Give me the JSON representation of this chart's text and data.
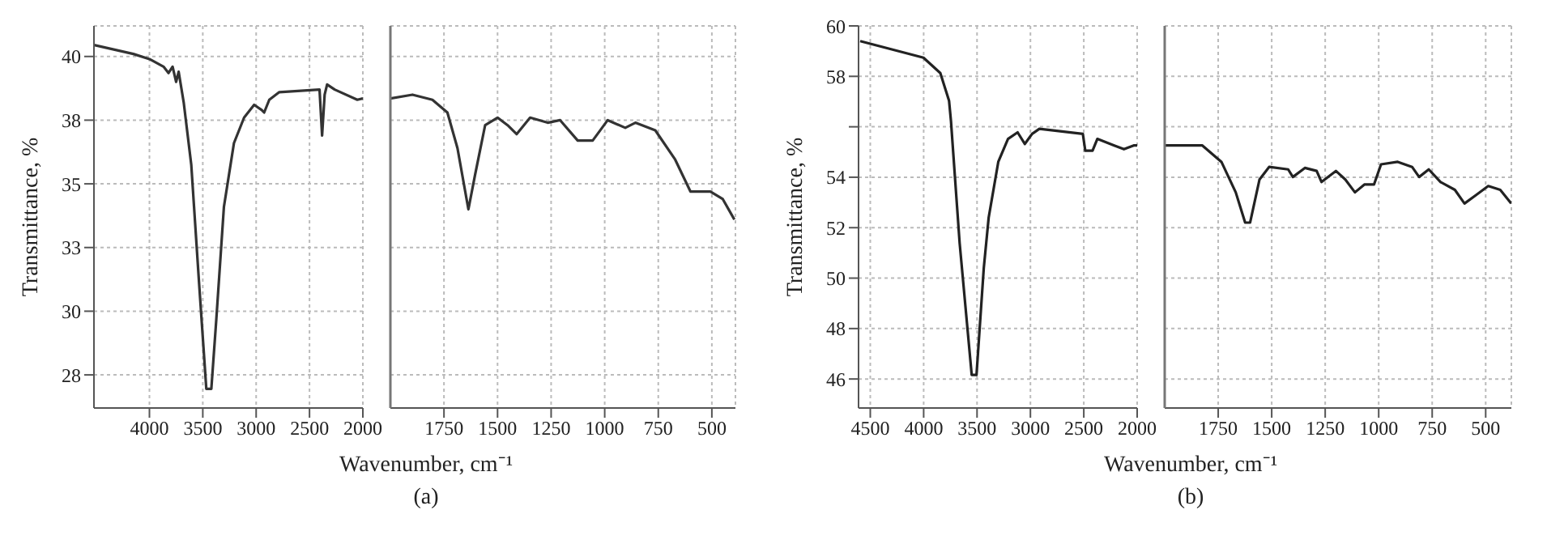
{
  "chart_data": [
    {
      "type": "line",
      "xlabel": "Wavenumber, cm⁻¹",
      "ylabel": "Transmittance, %",
      "annotations": [
        "(a)"
      ],
      "grid": true,
      "xlim": [
        4520,
        2000
      ],
      "xticks": [
        4000,
        3500,
        3000,
        2500,
        2000
      ],
      "ylim": [
        26.2,
        41.2
      ],
      "yticks": [
        {
          "value": 27.5,
          "label": "28"
        },
        30,
        {
          "value": 32.5,
          "label": "33"
        },
        35,
        {
          "value": 37.5,
          "label": "38"
        },
        40
      ],
      "series": [
        {
          "color": "#333333",
          "x": [
            4519,
            4151,
            4000,
            3868,
            3821,
            3783,
            3750,
            3726,
            3679,
            3608,
            3538,
            3467,
            3420,
            3373,
            3302,
            3208,
            3113,
            3019,
            2948,
            2925,
            2877,
            2783,
            2406,
            2382,
            2358,
            2335,
            2264,
            2052,
            2000
          ],
          "values": [
            40.45,
            40.1,
            39.9,
            39.6,
            39.35,
            39.6,
            39.0,
            39.4,
            38.2,
            35.75,
            31.3,
            26.95,
            26.95,
            29.7,
            34.1,
            36.6,
            37.6,
            38.1,
            37.9,
            37.8,
            38.3,
            38.6,
            38.7,
            36.9,
            38.5,
            38.9,
            38.7,
            38.3,
            38.35
          ]
        }
      ]
    },
    {
      "type": "line",
      "tick_labels": "x",
      "grid": true,
      "xlim": [
        2000,
        390
      ],
      "xticks": [
        1750,
        1500,
        1250,
        1000,
        750,
        500
      ],
      "ylim": [
        26.2,
        41.2
      ],
      "yticks": [
        27.5,
        30,
        32.5,
        35,
        37.5,
        40
      ],
      "series": [
        {
          "color": "#333333",
          "x": [
            2000,
            1897,
            1804,
            1734,
            1687,
            1636,
            1605,
            1558,
            1500,
            1453,
            1411,
            1348,
            1266,
            1208,
            1126,
            1056,
            986,
            904,
            857,
            764,
            671,
            600,
            507,
            449,
            395
          ],
          "values": [
            38.35,
            38.5,
            38.3,
            37.8,
            36.4,
            34.0,
            35.35,
            37.3,
            37.6,
            37.3,
            36.95,
            37.6,
            37.4,
            37.5,
            36.7,
            36.7,
            37.5,
            37.2,
            37.4,
            37.1,
            35.95,
            34.7,
            34.7,
            34.4,
            33.6
          ]
        }
      ]
    },
    {
      "type": "line",
      "xlabel": "Wavenumber, cm⁻¹",
      "ylabel": "Transmittance, %",
      "annotations": [
        "(b)"
      ],
      "grid": true,
      "xlim": [
        4610,
        2000
      ],
      "xticks": [
        4500,
        4000,
        3500,
        3000,
        2500,
        2000
      ],
      "ylim": [
        44.85,
        60
      ],
      "yticks": [
        46,
        48,
        50,
        52,
        54,
        {
          "value": 56,
          "label": null
        },
        58,
        60
      ],
      "series": [
        {
          "color": "#222222",
          "x": [
            4595,
            4002,
            3844,
            3762,
            3744,
            3663,
            3550,
            3505,
            3437,
            3391,
            3301,
            3210,
            3120,
            3052,
            2984,
            2916,
            2509,
            2486,
            2418,
            2373,
            2215,
            2124,
            2033,
            2000
          ],
          "values": [
            59.4,
            58.74,
            58.13,
            57.03,
            56.22,
            51.39,
            46.16,
            46.16,
            50.39,
            52.4,
            54.61,
            55.52,
            55.78,
            55.32,
            55.72,
            55.92,
            55.72,
            55.05,
            55.05,
            55.52,
            55.26,
            55.11,
            55.26,
            55.26
          ]
        }
      ]
    },
    {
      "type": "line",
      "tick_labels": "x",
      "grid": true,
      "xlim": [
        2000,
        380
      ],
      "xticks": [
        1750,
        1500,
        1250,
        1000,
        750,
        500
      ],
      "ylim": [
        44.85,
        60
      ],
      "yticks": [
        46,
        48,
        50,
        52,
        54,
        {
          "value": 56,
          "label": null
        },
        58,
        60
      ],
      "series": [
        {
          "color": "#222222",
          "x": [
            2000,
            1824,
            1735,
            1668,
            1624,
            1601,
            1557,
            1512,
            1423,
            1401,
            1345,
            1290,
            1267,
            1200,
            1156,
            1111,
            1067,
            1022,
            989,
            911,
            844,
            811,
            766,
            711,
            644,
            599,
            544,
            488,
            432,
            381
          ],
          "values": [
            55.26,
            55.26,
            54.61,
            53.4,
            52.2,
            52.2,
            53.91,
            54.41,
            54.31,
            54.01,
            54.37,
            54.25,
            53.81,
            54.25,
            53.91,
            53.4,
            53.71,
            53.71,
            54.51,
            54.61,
            54.41,
            54.01,
            54.31,
            53.81,
            53.5,
            52.96,
            53.3,
            53.65,
            53.5,
            52.96
          ]
        }
      ]
    }
  ]
}
